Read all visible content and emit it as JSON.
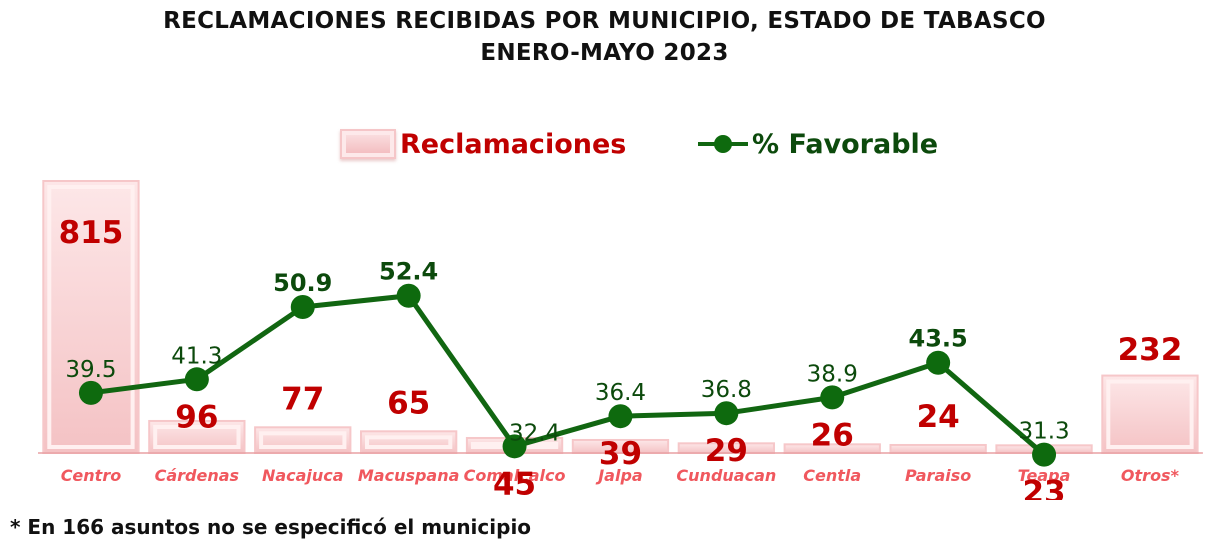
{
  "title_line1": "RECLAMACIONES RECIBIDAS POR MUNICIPIO, ESTADO DE TABASCO",
  "title_line2": "ENERO-MAYO 2023",
  "legend": {
    "bar_label": "Reclamaciones",
    "line_label": "% Favorable"
  },
  "footnote": "* En 166 asuntos no se especificó el municipio",
  "colors": {
    "bar_label": "#c00000",
    "category": "#f0585e",
    "line": "#116611",
    "marker": "#0e6a0e",
    "line_label": "#0c4a0c"
  },
  "chart_data": {
    "type": "bar+line",
    "title": "RECLAMACIONES RECIBIDAS POR MUNICIPIO, ESTADO DE TABASCO ENERO-MAYO 2023",
    "categories": [
      "Centro",
      "Cárdenas",
      "Nacajuca",
      "Macuspana",
      "Comalcalco",
      "Jalpa",
      "Cunduacan",
      "Centla",
      "Paraiso",
      "Teapa",
      "Otros*"
    ],
    "series": [
      {
        "name": "Reclamaciones",
        "type": "bar",
        "values": [
          815,
          96,
          77,
          65,
          45,
          39,
          29,
          26,
          24,
          23,
          232
        ]
      },
      {
        "name": "% Favorable",
        "type": "line",
        "values": [
          39.5,
          41.3,
          50.9,
          52.4,
          32.4,
          36.4,
          36.8,
          38.9,
          43.5,
          31.3,
          null
        ]
      }
    ],
    "bold_line_labels": [
      50.9,
      52.4,
      43.5
    ],
    "legend_position": "top-center",
    "grid": false
  }
}
